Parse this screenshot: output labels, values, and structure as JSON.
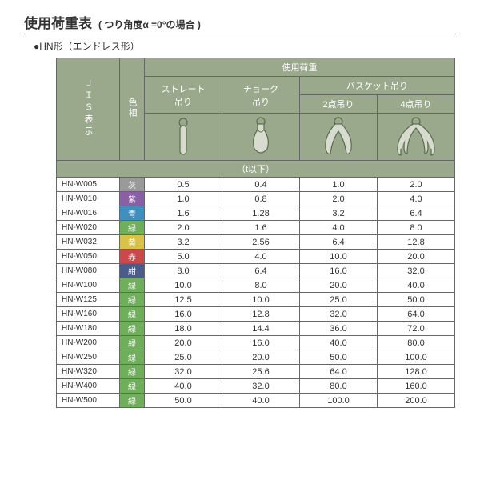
{
  "title": {
    "main": "使用荷重表",
    "sub": "( つり角度α =0°の場合 )"
  },
  "subtitle": "●HN形（エンドレス形）",
  "headers": {
    "jis": "ＪＩＳ表示",
    "color": "色相",
    "load": "使用荷重",
    "straight": "ストレート\n吊り",
    "choke": "チョーク\n吊り",
    "basket": "バスケット吊り",
    "basket2": "2点吊り",
    "basket4": "4点吊り",
    "unit": "（t以下）"
  },
  "color_map": {
    "灰": "#9a9a9a",
    "紫": "#8a5fa3",
    "青": "#3f8fbf",
    "緑": "#6fae5a",
    "黄": "#d9c24a",
    "赤": "#c94a4a",
    "紺": "#4a5d8a"
  },
  "rows": [
    {
      "jis": "HN-W005",
      "c": "灰",
      "v": [
        "0.5",
        "0.4",
        "1.0",
        "2.0"
      ]
    },
    {
      "jis": "HN-W010",
      "c": "紫",
      "v": [
        "1.0",
        "0.8",
        "2.0",
        "4.0"
      ]
    },
    {
      "jis": "HN-W016",
      "c": "青",
      "v": [
        "1.6",
        "1.28",
        "3.2",
        "6.4"
      ]
    },
    {
      "jis": "HN-W020",
      "c": "緑",
      "v": [
        "2.0",
        "1.6",
        "4.0",
        "8.0"
      ]
    },
    {
      "jis": "HN-W032",
      "c": "黄",
      "v": [
        "3.2",
        "2.56",
        "6.4",
        "12.8"
      ]
    },
    {
      "jis": "HN-W050",
      "c": "赤",
      "v": [
        "5.0",
        "4.0",
        "10.0",
        "20.0"
      ]
    },
    {
      "jis": "HN-W080",
      "c": "紺",
      "v": [
        "8.0",
        "6.4",
        "16.0",
        "32.0"
      ]
    },
    {
      "jis": "HN-W100",
      "c": "緑",
      "v": [
        "10.0",
        "8.0",
        "20.0",
        "40.0"
      ]
    },
    {
      "jis": "HN-W125",
      "c": "緑",
      "v": [
        "12.5",
        "10.0",
        "25.0",
        "50.0"
      ]
    },
    {
      "jis": "HN-W160",
      "c": "緑",
      "v": [
        "16.0",
        "12.8",
        "32.0",
        "64.0"
      ]
    },
    {
      "jis": "HN-W180",
      "c": "緑",
      "v": [
        "18.0",
        "14.4",
        "36.0",
        "72.0"
      ]
    },
    {
      "jis": "HN-W200",
      "c": "緑",
      "v": [
        "20.0",
        "16.0",
        "40.0",
        "80.0"
      ]
    },
    {
      "jis": "HN-W250",
      "c": "緑",
      "v": [
        "25.0",
        "20.0",
        "50.0",
        "100.0"
      ]
    },
    {
      "jis": "HN-W320",
      "c": "緑",
      "v": [
        "32.0",
        "25.6",
        "64.0",
        "128.0"
      ]
    },
    {
      "jis": "HN-W400",
      "c": "緑",
      "v": [
        "40.0",
        "32.0",
        "80.0",
        "160.0"
      ]
    },
    {
      "jis": "HN-W500",
      "c": "緑",
      "v": [
        "50.0",
        "40.0",
        "100.0",
        "200.0"
      ]
    }
  ],
  "icons": {
    "stroke": "#5a6b4f",
    "fill": "#d8dccf"
  }
}
